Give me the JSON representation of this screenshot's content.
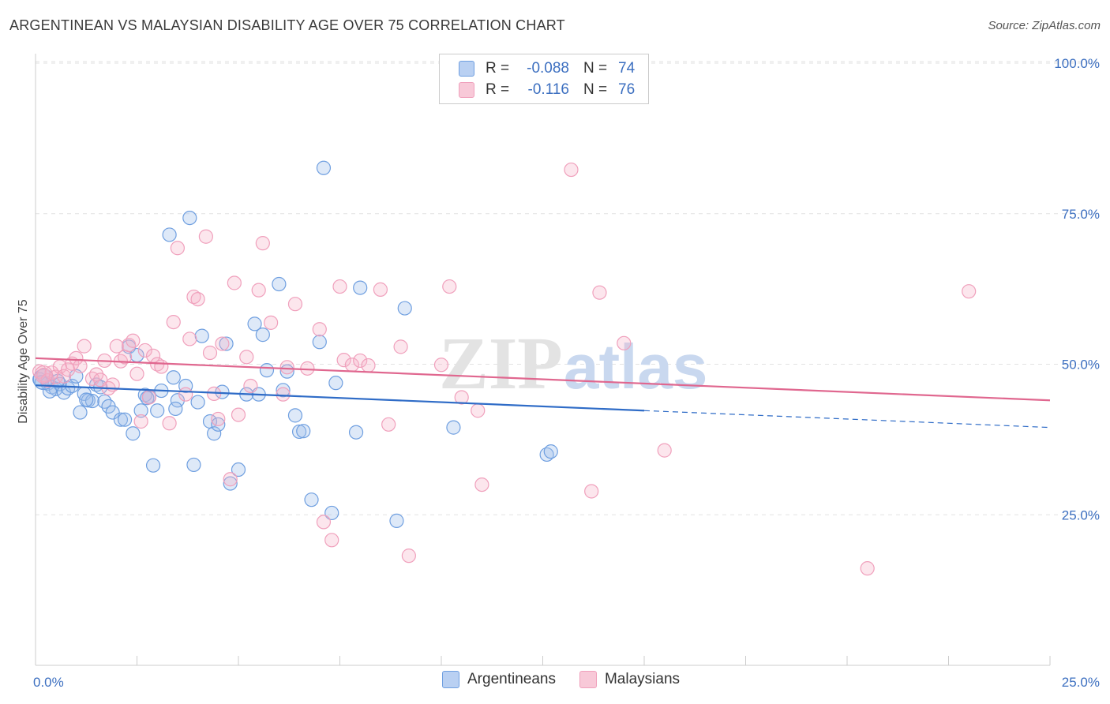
{
  "header": {
    "title": "ARGENTINEAN VS MALAYSIAN DISABILITY AGE OVER 75 CORRELATION CHART",
    "source": "Source: ZipAtlas.com"
  },
  "watermark": {
    "zip": "ZIP",
    "atlas": "atlas"
  },
  "legend": {
    "rows": [
      {
        "r_label": "R =",
        "r_value": "-0.088",
        "n_label": "N =",
        "n_value": "74"
      },
      {
        "r_label": "R =",
        "r_value": "-0.116",
        "n_label": "N =",
        "n_value": "76"
      }
    ]
  },
  "bottom_legend": {
    "items": [
      "Argentineans",
      "Malaysians"
    ]
  },
  "chart_data": {
    "type": "scatter",
    "ylabel": "Disability Age Over 75",
    "xlim": [
      0,
      25
    ],
    "ylim": [
      0,
      100
    ],
    "x_tick_labels": [
      "0.0%",
      "25.0%"
    ],
    "y_ticks": [
      25,
      50,
      75,
      100
    ],
    "y_tick_labels": [
      "25.0%",
      "50.0%",
      "75.0%",
      "100.0%"
    ],
    "grid": true,
    "legend_position": "top-center",
    "series": [
      {
        "name": "Argentineans",
        "color": "#6f9fe0",
        "line_color": "#2f6cc7",
        "trend": {
          "x0": 0,
          "y0": 46.5,
          "x1": 15,
          "y1": 42.3,
          "dash_to_x": 25,
          "dash_to_y": 39.5
        },
        "points": [
          [
            0.1,
            47.5
          ],
          [
            0.2,
            48.2
          ],
          [
            0.3,
            46.8
          ],
          [
            0.4,
            46.2
          ],
          [
            0.5,
            45.9
          ],
          [
            0.6,
            46.7
          ],
          [
            0.7,
            45.3
          ],
          [
            0.8,
            46.0
          ],
          [
            0.9,
            46.4
          ],
          [
            1.0,
            48.0
          ],
          [
            1.1,
            42.0
          ],
          [
            1.2,
            45.1
          ],
          [
            1.3,
            44.0
          ],
          [
            1.4,
            43.9
          ],
          [
            1.5,
            46.6
          ],
          [
            1.6,
            46.2
          ],
          [
            1.7,
            43.8
          ],
          [
            1.8,
            43.0
          ],
          [
            1.9,
            42.0
          ],
          [
            2.1,
            40.8
          ],
          [
            2.2,
            40.8
          ],
          [
            2.3,
            52.9
          ],
          [
            2.4,
            38.5
          ],
          [
            2.5,
            51.5
          ],
          [
            2.6,
            42.3
          ],
          [
            2.7,
            44.9
          ],
          [
            2.8,
            44.6
          ],
          [
            2.9,
            33.2
          ],
          [
            3.0,
            42.3
          ],
          [
            3.1,
            45.6
          ],
          [
            3.3,
            71.5
          ],
          [
            3.4,
            47.8
          ],
          [
            3.5,
            44.0
          ],
          [
            3.7,
            46.4
          ],
          [
            3.8,
            74.3
          ],
          [
            3.9,
            33.3
          ],
          [
            4.0,
            43.7
          ],
          [
            4.1,
            54.7
          ],
          [
            4.3,
            40.5
          ],
          [
            4.4,
            38.5
          ],
          [
            4.5,
            40.0
          ],
          [
            4.6,
            45.4
          ],
          [
            4.7,
            53.4
          ],
          [
            4.8,
            30.2
          ],
          [
            5.0,
            32.5
          ],
          [
            5.2,
            45.0
          ],
          [
            5.4,
            56.7
          ],
          [
            5.5,
            45.0
          ],
          [
            5.6,
            54.9
          ],
          [
            5.7,
            49.0
          ],
          [
            6.0,
            63.3
          ],
          [
            6.1,
            45.7
          ],
          [
            6.2,
            48.8
          ],
          [
            6.4,
            41.5
          ],
          [
            6.5,
            38.8
          ],
          [
            6.6,
            38.9
          ],
          [
            6.8,
            27.5
          ],
          [
            7.0,
            53.7
          ],
          [
            7.1,
            82.6
          ],
          [
            7.3,
            25.3
          ],
          [
            7.4,
            46.9
          ],
          [
            7.9,
            38.7
          ],
          [
            8.0,
            62.7
          ],
          [
            8.9,
            24.0
          ],
          [
            9.1,
            59.3
          ],
          [
            10.3,
            39.5
          ],
          [
            12.6,
            35.0
          ],
          [
            12.7,
            35.5
          ],
          [
            0.15,
            47.0
          ],
          [
            0.35,
            45.5
          ],
          [
            0.55,
            47.2
          ],
          [
            1.25,
            44.1
          ],
          [
            2.75,
            44.4
          ],
          [
            3.45,
            42.6
          ]
        ]
      },
      {
        "name": "Malaysians",
        "color": "#f0a0bc",
        "line_color": "#e0678f",
        "trend": {
          "x0": 0,
          "y0": 51.0,
          "x1": 25,
          "y1": 44.0
        },
        "points": [
          [
            0.1,
            48.8
          ],
          [
            0.2,
            48.2
          ],
          [
            0.3,
            47.3
          ],
          [
            0.4,
            48.6
          ],
          [
            0.5,
            47.9
          ],
          [
            0.6,
            49.6
          ],
          [
            0.7,
            48.0
          ],
          [
            0.8,
            49.1
          ],
          [
            0.9,
            50.1
          ],
          [
            1.0,
            51.0
          ],
          [
            1.1,
            49.7
          ],
          [
            1.2,
            53.0
          ],
          [
            1.4,
            47.6
          ],
          [
            1.5,
            48.3
          ],
          [
            1.6,
            47.4
          ],
          [
            1.7,
            50.6
          ],
          [
            1.8,
            46.0
          ],
          [
            1.9,
            46.6
          ],
          [
            2.0,
            53.0
          ],
          [
            2.1,
            50.5
          ],
          [
            2.2,
            51.2
          ],
          [
            2.3,
            53.2
          ],
          [
            2.4,
            53.9
          ],
          [
            2.5,
            48.4
          ],
          [
            2.6,
            40.5
          ],
          [
            2.7,
            52.3
          ],
          [
            2.8,
            44.5
          ],
          [
            2.9,
            51.4
          ],
          [
            3.0,
            50.0
          ],
          [
            3.1,
            49.6
          ],
          [
            3.3,
            40.2
          ],
          [
            3.4,
            57.0
          ],
          [
            3.5,
            69.3
          ],
          [
            3.7,
            45.0
          ],
          [
            3.8,
            54.2
          ],
          [
            3.9,
            61.2
          ],
          [
            4.0,
            60.8
          ],
          [
            4.2,
            71.2
          ],
          [
            4.3,
            51.9
          ],
          [
            4.4,
            45.1
          ],
          [
            4.5,
            40.9
          ],
          [
            4.6,
            53.4
          ],
          [
            4.8,
            30.9
          ],
          [
            4.9,
            63.5
          ],
          [
            5.0,
            41.6
          ],
          [
            5.2,
            51.2
          ],
          [
            5.3,
            46.4
          ],
          [
            5.5,
            62.3
          ],
          [
            5.6,
            70.1
          ],
          [
            5.8,
            56.9
          ],
          [
            6.1,
            45.0
          ],
          [
            6.2,
            49.5
          ],
          [
            6.4,
            60.0
          ],
          [
            6.7,
            49.3
          ],
          [
            7.0,
            55.8
          ],
          [
            7.1,
            23.8
          ],
          [
            7.3,
            20.8
          ],
          [
            7.5,
            62.9
          ],
          [
            7.6,
            50.7
          ],
          [
            7.8,
            49.9
          ],
          [
            8.0,
            50.6
          ],
          [
            8.2,
            49.8
          ],
          [
            8.5,
            62.4
          ],
          [
            8.7,
            40.0
          ],
          [
            9.0,
            52.9
          ],
          [
            9.2,
            18.2
          ],
          [
            10.0,
            49.9
          ],
          [
            10.2,
            62.9
          ],
          [
            10.5,
            44.5
          ],
          [
            10.9,
            42.3
          ],
          [
            11.0,
            30.0
          ],
          [
            13.2,
            82.3
          ],
          [
            13.7,
            28.9
          ],
          [
            13.9,
            61.9
          ],
          [
            14.5,
            53.5
          ],
          [
            15.5,
            35.7
          ]
        ]
      },
      {
        "name": "Malaysians-outliers",
        "color": "#f0a0bc",
        "points": [
          [
            20.5,
            16.1
          ],
          [
            23.0,
            62.1
          ]
        ]
      }
    ]
  }
}
